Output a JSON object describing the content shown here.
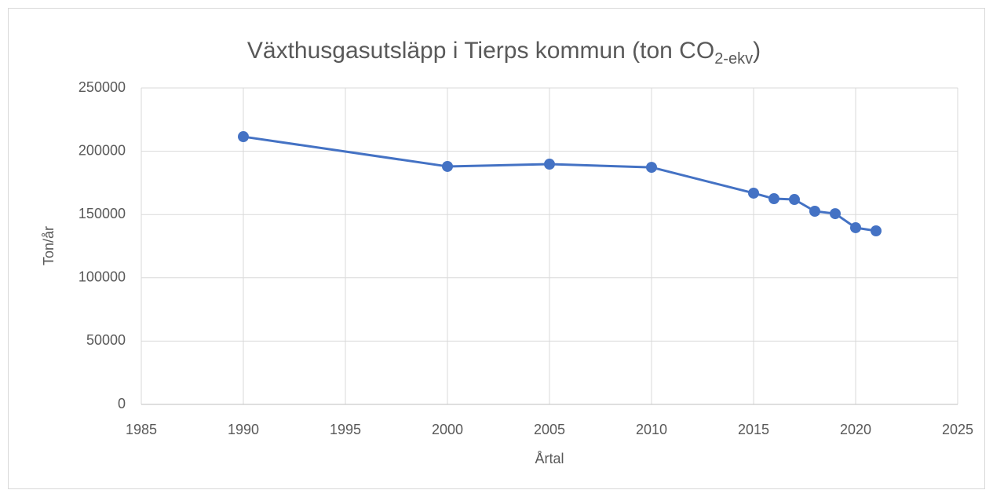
{
  "chart_data": {
    "type": "line",
    "title_parts": [
      "Växthusgasutsläpp i Tierps kommun (ton CO",
      "2-ekv",
      ")"
    ],
    "xlabel": "Årtal",
    "ylabel": "Ton/år",
    "x": [
      1990,
      2000,
      2005,
      2010,
      2015,
      2016,
      2017,
      2018,
      2019,
      2020,
      2021
    ],
    "values": [
      211500,
      188000,
      189800,
      187300,
      166900,
      162500,
      161900,
      152600,
      150700,
      139600,
      137100
    ],
    "color": "#4472c4",
    "xlim": [
      1985,
      2025
    ],
    "xticks": [
      1985,
      1990,
      1995,
      2000,
      2005,
      2010,
      2015,
      2020,
      2025
    ],
    "ylim": [
      0,
      250000
    ],
    "yticks": [
      0,
      50000,
      100000,
      150000,
      200000,
      250000
    ],
    "grid": true
  }
}
